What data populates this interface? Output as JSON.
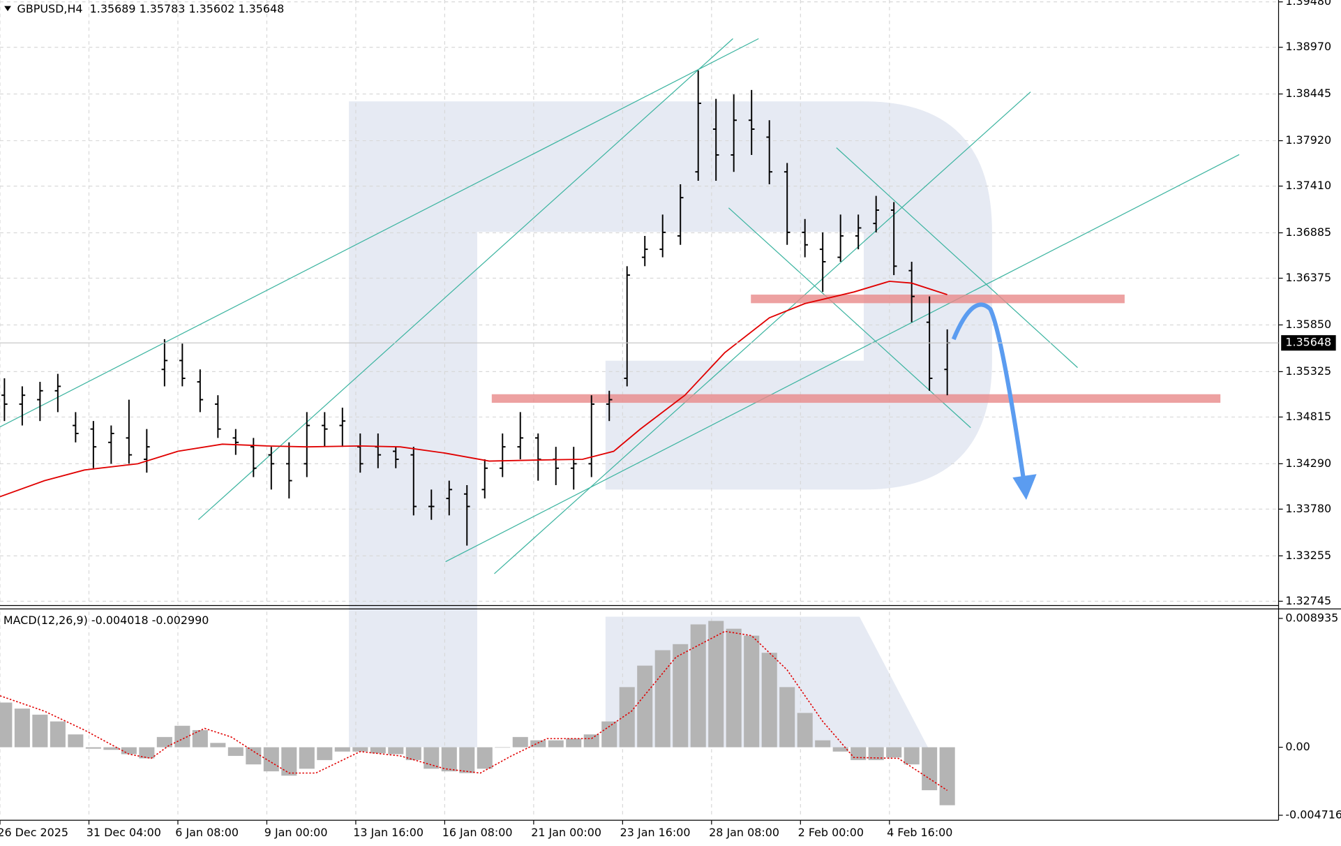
{
  "header": "GBPUSD,H4  1.35689 1.35783 1.35602 1.35648",
  "chart_data": [
    {
      "type": "candlestick",
      "x": [
        1,
        5,
        9,
        13,
        17,
        21,
        25,
        29,
        33,
        37,
        41,
        45,
        49,
        53,
        57,
        61,
        65,
        69,
        73,
        77,
        81,
        85,
        89,
        93,
        97,
        101,
        105,
        109,
        113,
        117,
        121,
        125,
        129,
        133,
        137,
        141,
        145,
        149,
        153,
        157,
        161,
        165,
        169,
        173,
        177,
        181,
        185,
        189,
        193,
        197,
        201,
        205,
        209,
        213
      ],
      "open": [
        1.3506,
        1.3496,
        1.3501,
        1.3511,
        1.3472,
        1.3468,
        1.3453,
        1.3458,
        1.3434,
        1.3535,
        1.3545,
        1.3521,
        1.3496,
        1.3458,
        1.3448,
        1.3439,
        1.3429,
        1.3429,
        1.3472,
        1.3472,
        1.3448,
        1.3448,
        1.3443,
        1.3439,
        1.3381,
        1.339,
        1.3395,
        1.34,
        1.3424,
        1.3448,
        1.3458,
        1.3434,
        1.3424,
        1.3429,
        1.3496,
        1.3525,
        1.3661,
        1.367,
        1.3685,
        1.3757,
        1.3805,
        1.3776,
        1.3815,
        1.3796,
        1.3757,
        1.3689,
        1.367,
        1.3661,
        1.3685,
        1.3699,
        1.3714,
        1.3646,
        1.3588,
        1.3535
      ],
      "high": [
        1.3525,
        1.3516,
        1.3521,
        1.353,
        1.3487,
        1.3477,
        1.3472,
        1.3501,
        1.3468,
        1.3569,
        1.3564,
        1.3535,
        1.3506,
        1.3468,
        1.3458,
        1.3448,
        1.3453,
        1.3487,
        1.3487,
        1.3492,
        1.3463,
        1.3463,
        1.3448,
        1.3448,
        1.34,
        1.341,
        1.3405,
        1.3434,
        1.3463,
        1.3487,
        1.3463,
        1.3448,
        1.3448,
        1.3506,
        1.3511,
        1.3651,
        1.3685,
        1.3709,
        1.3743,
        1.3871,
        1.3839,
        1.3844,
        1.3849,
        1.3815,
        1.3767,
        1.3704,
        1.3689,
        1.3709,
        1.3709,
        1.373,
        1.3723,
        1.3656,
        1.3617,
        1.358
      ],
      "low": [
        1.3477,
        1.3472,
        1.3477,
        1.3487,
        1.3453,
        1.3424,
        1.3429,
        1.3429,
        1.3419,
        1.3516,
        1.3516,
        1.3487,
        1.3458,
        1.3439,
        1.3414,
        1.34,
        1.339,
        1.3414,
        1.3448,
        1.3448,
        1.3419,
        1.3424,
        1.3424,
        1.3371,
        1.3366,
        1.3371,
        1.3337,
        1.339,
        1.3414,
        1.3434,
        1.341,
        1.3405,
        1.34,
        1.3414,
        1.3477,
        1.3516,
        1.3651,
        1.3661,
        1.3675,
        1.3747,
        1.3747,
        1.3757,
        1.3776,
        1.3743,
        1.3675,
        1.3661,
        1.3622,
        1.3656,
        1.367,
        1.3689,
        1.3641,
        1.3588,
        1.3511,
        1.3506
      ],
      "close": [
        1.3496,
        1.3506,
        1.3511,
        1.3516,
        1.3463,
        1.3448,
        1.3463,
        1.3439,
        1.3448,
        1.3545,
        1.3525,
        1.3501,
        1.3468,
        1.3453,
        1.3424,
        1.3429,
        1.341,
        1.3472,
        1.3468,
        1.3477,
        1.3429,
        1.3439,
        1.3434,
        1.3381,
        1.3381,
        1.34,
        1.3381,
        1.3424,
        1.3448,
        1.3458,
        1.3434,
        1.3424,
        1.3429,
        1.3496,
        1.3501,
        1.3641,
        1.367,
        1.3689,
        1.3728,
        1.3834,
        1.3776,
        1.3815,
        1.3805,
        1.3757,
        1.3689,
        1.3675,
        1.3656,
        1.3685,
        1.3694,
        1.3714,
        1.3651,
        1.3617,
        1.3525,
        1.35648
      ],
      "color": "#000000",
      "line": {
        "x": [
          0,
          10,
          19,
          31,
          40,
          50,
          60,
          69,
          81,
          90,
          100,
          110,
          119,
          131,
          138,
          144,
          154,
          163,
          173,
          181,
          192,
          200,
          205,
          213
        ],
        "values": [
          1.3392,
          1.341,
          1.3422,
          1.3429,
          1.3443,
          1.3451,
          1.3449,
          1.3448,
          1.3449,
          1.3448,
          1.3441,
          1.3432,
          1.3433,
          1.3434,
          1.3443,
          1.3468,
          1.3506,
          1.3554,
          1.3593,
          1.3609,
          1.3622,
          1.3634,
          1.3632,
          1.3619
        ],
        "color": "#e00000"
      },
      "last_price": {
        "value": 1.35648,
        "label": "1.35648"
      },
      "xlim": [
        0,
        287.5
      ],
      "xticks": [
        {
          "value": 0,
          "label": "26 Dec 2025"
        },
        {
          "value": 20,
          "label": "31 Dec 04:00"
        },
        {
          "value": 40,
          "label": "6 Jan 08:00"
        },
        {
          "value": 60,
          "label": "9 Jan 00:00"
        },
        {
          "value": 80,
          "label": "13 Jan 16:00"
        },
        {
          "value": 100,
          "label": "16 Jan 08:00"
        },
        {
          "value": 120,
          "label": "21 Jan 00:00"
        },
        {
          "value": 140,
          "label": "23 Jan 16:00"
        },
        {
          "value": 160,
          "label": "28 Jan 08:00"
        },
        {
          "value": 180,
          "label": "2 Feb 00:00"
        },
        {
          "value": 200,
          "label": "4 Feb 16:00"
        }
      ],
      "ylim": [
        1.32697,
        1.39501
      ],
      "yticks": [
        {
          "value": 1.3948,
          "label": "1.39480"
        },
        {
          "value": 1.3897,
          "label": "1.38970"
        },
        1.38445,
        {
          "value": 1.3792,
          "label": "1.37920"
        },
        {
          "value": 1.3741,
          "label": "1.37410"
        },
        1.36885,
        1.36375,
        {
          "value": 1.3585,
          "label": "1.35850"
        },
        1.35325,
        1.34815,
        {
          "value": 1.3429,
          "label": "1.34290"
        },
        {
          "value": 1.3378,
          "label": "1.33780"
        },
        1.33255,
        1.32745
      ],
      "grid": true
    },
    {
      "type": "macd",
      "title": "MACD(12,26,9) -0.004018 -0.002990",
      "x": [
        1,
        5,
        9,
        13,
        17,
        21,
        25,
        29,
        33,
        37,
        41,
        45,
        49,
        53,
        57,
        61,
        65,
        69,
        73,
        77,
        81,
        85,
        89,
        93,
        97,
        101,
        105,
        109,
        113,
        117,
        121,
        125,
        129,
        133,
        137,
        141,
        145,
        149,
        153,
        157,
        161,
        165,
        169,
        173,
        177,
        181,
        185,
        189,
        193,
        197,
        201,
        205,
        209,
        213
      ],
      "values": [
        0.0031,
        0.00268,
        0.00226,
        0.00179,
        0.00089,
        -0.0001,
        -0.00018,
        -0.00048,
        -0.00077,
        0.00071,
        0.00149,
        0.00119,
        0.0003,
        -0.0006,
        -0.00119,
        -0.00167,
        -0.00197,
        -0.00149,
        -0.00089,
        -0.0003,
        -0.0003,
        -0.00042,
        -0.00048,
        -0.00089,
        -0.00149,
        -0.00167,
        -0.00179,
        -0.00149,
        0,
        0.00071,
        0.00048,
        0.00048,
        0.0006,
        0.00089,
        0.00179,
        0.00417,
        0.00566,
        0.00673,
        0.00715,
        0.00852,
        0.00876,
        0.00822,
        0.00774,
        0.00655,
        0.00417,
        0.00238,
        0.00048,
        -0.0003,
        -0.00089,
        -0.00089,
        -0.00071,
        -0.00119,
        -0.00298,
        -0.00402
      ],
      "color": "#b4b4b4",
      "signal": {
        "x": [
          0,
          10,
          19,
          29,
          34,
          38,
          46,
          52,
          58,
          65,
          71,
          81,
          90,
          100,
          108,
          115,
          123,
          133,
          142,
          152,
          163,
          169,
          177,
          185,
          192,
          202,
          213
        ],
        "values": [
          0.00357,
          0.0025,
          0.00119,
          -0.00048,
          -0.00077,
          0.00012,
          0.00131,
          0.00071,
          -0.00048,
          -0.00179,
          -0.00179,
          -0.0003,
          -0.0006,
          -0.00149,
          -0.00179,
          -0.0006,
          0.0006,
          0.0006,
          0.0025,
          0.00625,
          0.00804,
          0.00774,
          0.00536,
          0.00179,
          -0.00071,
          -0.00077,
          -0.00299
        ],
        "color": "#e00000"
      },
      "xlim": [
        0,
        287.5
      ],
      "ylim": [
        -0.0049,
        0.0094
      ],
      "yticks": [
        0.008935,
        {
          "value": 0,
          "label": "0.00"
        },
        -0.004716
      ]
    }
  ]
}
